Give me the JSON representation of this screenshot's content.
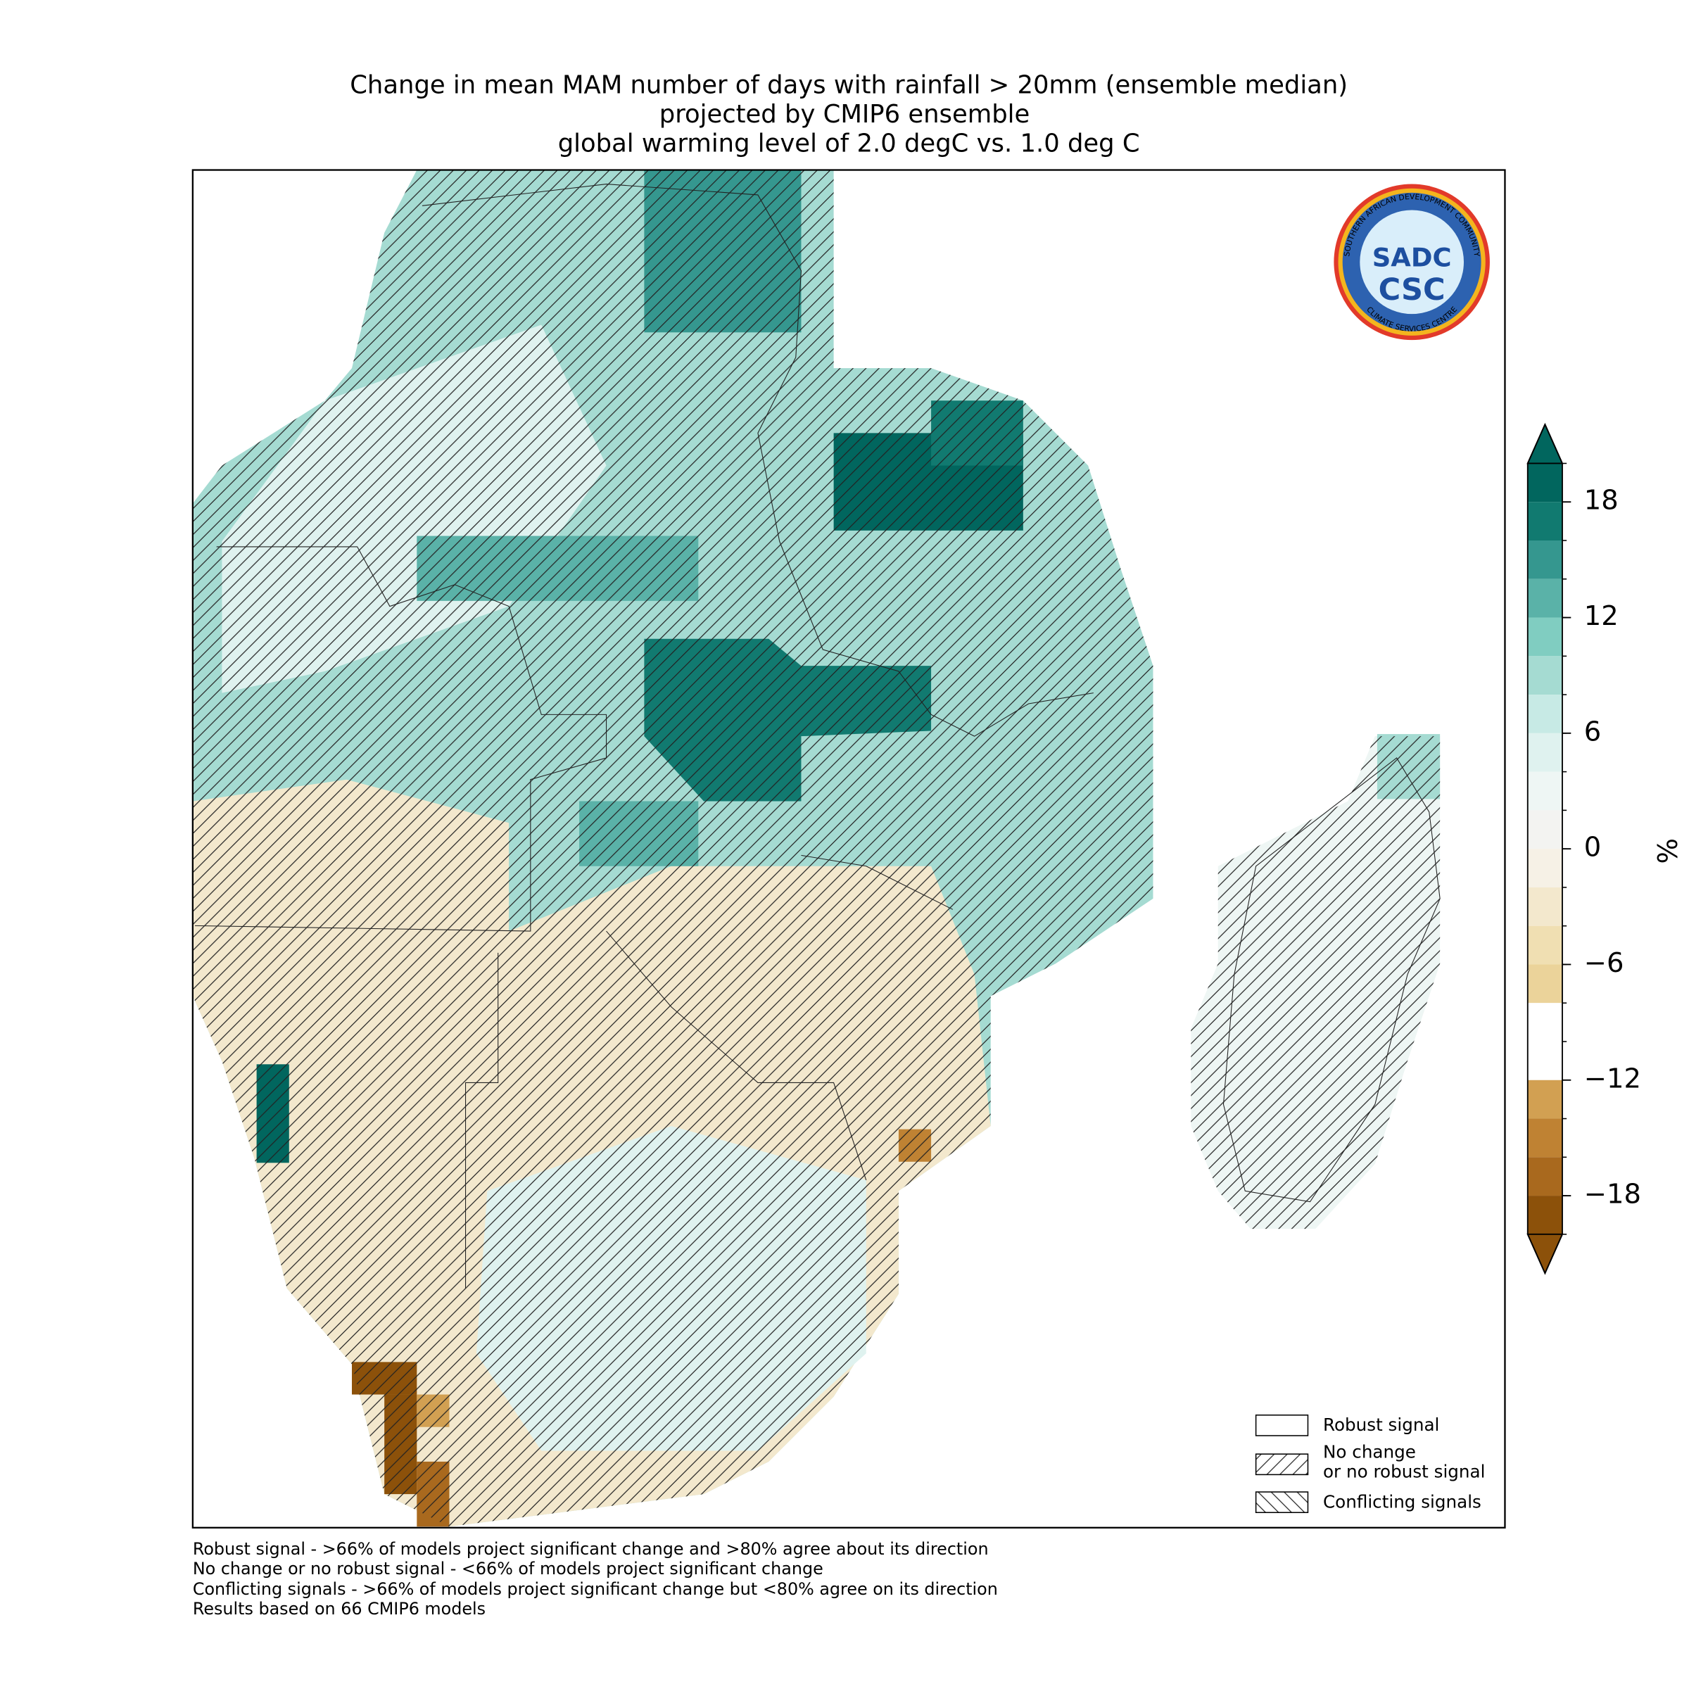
{
  "map": {
    "title": [
      "Change in mean MAM number of days with rainfall > 20mm (ensemble median)",
      "projected by CMIP6 ensemble",
      "global warming level of 2.0 degC vs. 1.0 deg C"
    ],
    "colorbar": {
      "label": "%",
      "levels": [
        20,
        18,
        16,
        14,
        12,
        10,
        8,
        6,
        4,
        2,
        0,
        -2,
        -4,
        -6,
        -8,
        -10,
        -12,
        -14,
        -16,
        -18,
        -20
      ],
      "colors": [
        "#01665e",
        "#117a70",
        "#35978f",
        "#5ab2a8",
        "#80cdc1",
        "#a5dbd2",
        "#c7eae5",
        "#dff2ef",
        "#eef6f4",
        "#f3f3f1",
        "#f6f1e6",
        "#f3e8cd",
        "#f0dfb2",
        "#ebd39a",
        "#ffffff",
        "#ffffff",
        "#d2a052",
        "#bf8233",
        "#a9691e",
        "#8c510a"
      ],
      "ticks": [
        18,
        12,
        6,
        0,
        {
          "value": -6,
          "label": "−6"
        },
        {
          "value": -12,
          "label": "−12"
        },
        {
          "value": -18,
          "label": "−18"
        }
      ]
    },
    "legend": [
      "Robust signal",
      "No change",
      "or no robust signal",
      "Conflicting signals"
    ],
    "footnotes": [
      "Robust signal - >66% of models project significant change and >80% agree about its direction",
      "No change or no robust signal - <66% of models project significant change",
      "Conflicting signals - >66% of models project significant change but <80% agree on its direction",
      "Results based on 66 CMIP6 models"
    ],
    "logo": {
      "main": "SADC",
      "sub": "CSC",
      "ring_top": "SOUTHERN AFRICAN DEVELOPMENT COMMUNITY",
      "ring_bottom": "CLIMATE SERVICES CENTRE"
    }
  }
}
